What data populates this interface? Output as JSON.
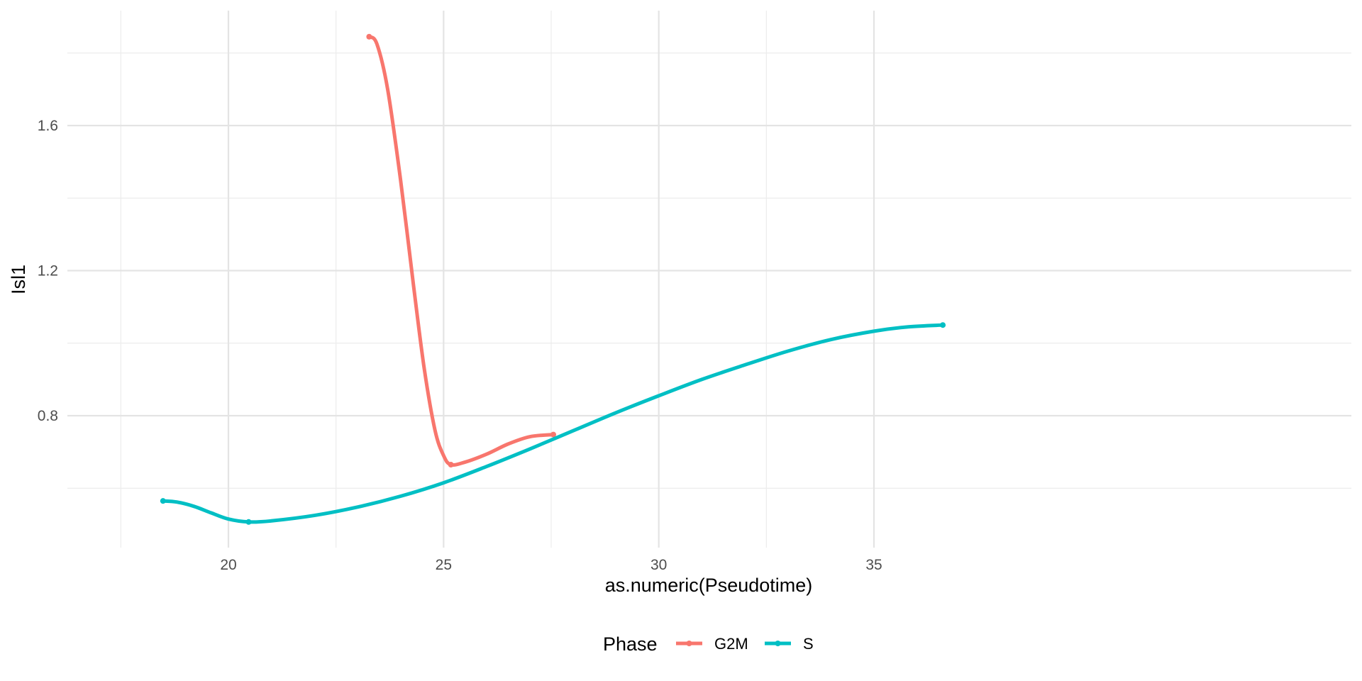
{
  "chart_data": {
    "type": "line",
    "title": "",
    "xlabel": "as.numeric(Pseudotime)",
    "ylabel": "Isl1",
    "xlim": [
      17.5,
      37.5
    ],
    "ylim": [
      0.39,
      1.9
    ],
    "x_ticks": [
      20,
      25,
      30,
      35
    ],
    "x_tick_labels": [
      "20",
      "25",
      "30",
      "35"
    ],
    "y_ticks": [
      0.8,
      1.2,
      1.6
    ],
    "y_tick_labels": [
      "0.8",
      "1.2",
      "1.6"
    ],
    "x_minor_ticks": [
      17.5,
      22.5,
      27.5,
      32.5
    ],
    "y_minor_ticks": [
      0.6,
      1.0,
      1.4,
      1.8
    ],
    "grid": true,
    "legend": {
      "title": "Phase",
      "position": "bottom"
    },
    "series": [
      {
        "name": "G2M",
        "color": "#F8766D",
        "points": [
          {
            "x": 23.27,
            "y": 1.845
          },
          {
            "x": 25.17,
            "y": 0.665
          },
          {
            "x": 27.55,
            "y": 0.748
          }
        ],
        "curve": [
          [
            23.27,
            1.845
          ],
          [
            23.45,
            1.825
          ],
          [
            23.7,
            1.7
          ],
          [
            24.0,
            1.45
          ],
          [
            24.3,
            1.16
          ],
          [
            24.55,
            0.93
          ],
          [
            24.8,
            0.76
          ],
          [
            25.0,
            0.69
          ],
          [
            25.17,
            0.665
          ],
          [
            25.5,
            0.672
          ],
          [
            26.0,
            0.694
          ],
          [
            26.5,
            0.722
          ],
          [
            27.0,
            0.742
          ],
          [
            27.55,
            0.748
          ]
        ]
      },
      {
        "name": "S",
        "color": "#00BFC4",
        "points": [
          {
            "x": 18.48,
            "y": 0.565
          },
          {
            "x": 20.47,
            "y": 0.507
          },
          {
            "x": 36.6,
            "y": 1.05
          }
        ],
        "curve": [
          [
            18.48,
            0.565
          ],
          [
            18.8,
            0.562
          ],
          [
            19.2,
            0.55
          ],
          [
            19.6,
            0.532
          ],
          [
            20.0,
            0.515
          ],
          [
            20.47,
            0.507
          ],
          [
            21.0,
            0.51
          ],
          [
            22.0,
            0.525
          ],
          [
            23.0,
            0.548
          ],
          [
            24.0,
            0.578
          ],
          [
            25.0,
            0.615
          ],
          [
            26.0,
            0.66
          ],
          [
            27.0,
            0.708
          ],
          [
            28.0,
            0.758
          ],
          [
            29.0,
            0.808
          ],
          [
            30.0,
            0.855
          ],
          [
            31.0,
            0.9
          ],
          [
            32.0,
            0.94
          ],
          [
            33.0,
            0.978
          ],
          [
            34.0,
            1.01
          ],
          [
            35.0,
            1.033
          ],
          [
            35.8,
            1.045
          ],
          [
            36.6,
            1.05
          ]
        ]
      }
    ]
  }
}
